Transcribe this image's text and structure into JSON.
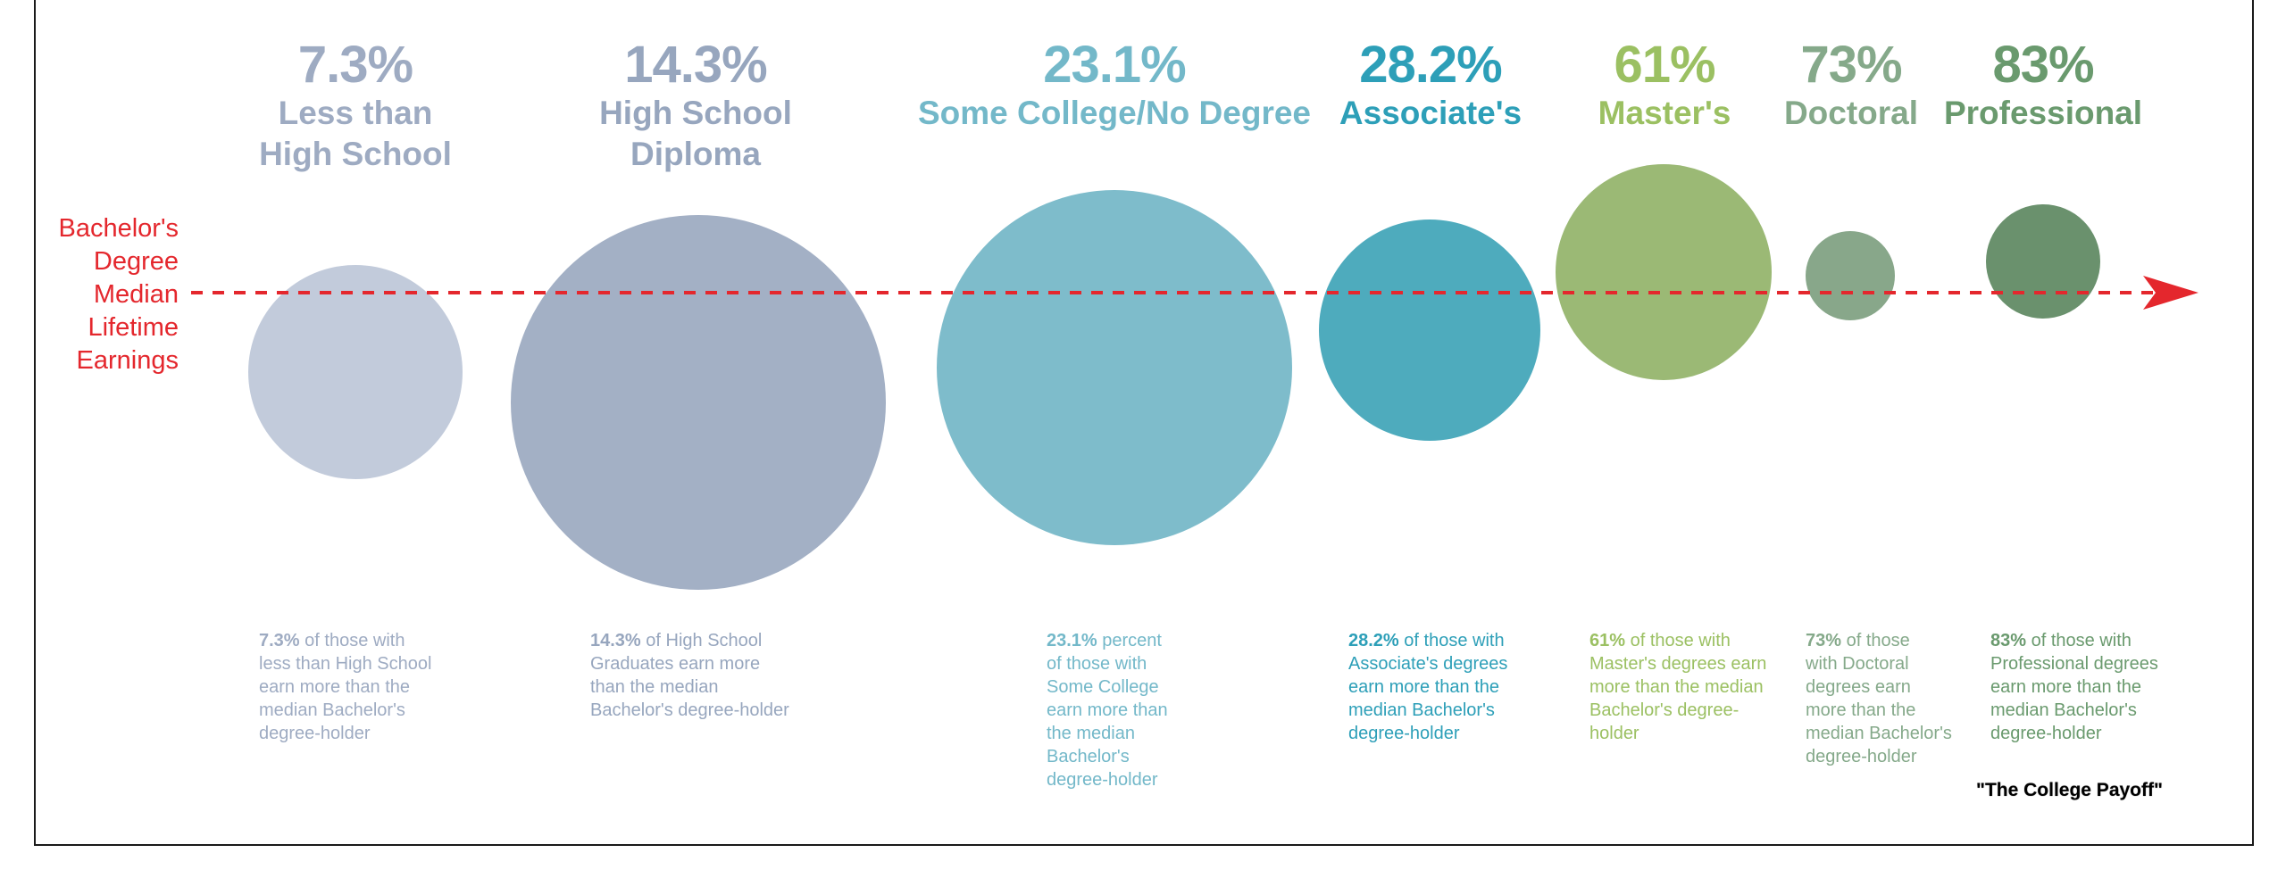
{
  "chart_data": {
    "type": "bubble",
    "title": "",
    "unit": "%",
    "reference_line": {
      "label_lines": [
        "Bachelor's",
        "Degree",
        "Median",
        "Lifetime",
        "Earnings"
      ],
      "color": "#e4272d",
      "style": "dashed-arrow"
    },
    "categories": [
      {
        "pct_label": "7.3%",
        "value": 7.3,
        "label_lines": [
          "Less than",
          "High School"
        ],
        "color": "#c2cbdb",
        "text_color": "#9eabc2",
        "desc_bold": "7.3%",
        "desc_lines": [
          " of those with",
          "less than High School",
          "earn more than the",
          "median Bachelor's",
          "degree-holder"
        ]
      },
      {
        "pct_label": "14.3%",
        "value": 14.3,
        "label_lines": [
          "High School",
          "Diploma"
        ],
        "color": "#a3b0c5",
        "text_color": "#97a6be",
        "desc_bold": "14.3%",
        "desc_lines": [
          " of High School",
          "Graduates earn more",
          "than the median",
          "Bachelor's degree-holder"
        ]
      },
      {
        "pct_label": "23.1%",
        "value": 23.1,
        "label_lines": [
          "Some College/No Degree"
        ],
        "color": "#7ebccb",
        "text_color": "#73b8c9",
        "desc_bold": "23.1%",
        "desc_lines": [
          " percent",
          "of those with",
          "Some College",
          "earn more than",
          "the median",
          "Bachelor's",
          "degree-holder"
        ]
      },
      {
        "pct_label": "28.2%",
        "value": 28.2,
        "label_lines": [
          "Associate's"
        ],
        "color": "#4eabbd",
        "text_color": "#2d9fb8",
        "desc_bold": "28.2%",
        "desc_lines": [
          " of those with",
          "Associate's degrees",
          "earn more than the",
          "median Bachelor's",
          "degree-holder"
        ]
      },
      {
        "pct_label": "61%",
        "value": 61,
        "label_lines": [
          "Master's"
        ],
        "color": "#9bb975",
        "text_color": "#9bc062",
        "desc_bold": "61%",
        "desc_lines": [
          " of those with",
          "Master's degrees earn",
          "more than the median",
          "Bachelor's degree-",
          "holder"
        ]
      },
      {
        "pct_label": "73%",
        "value": 73,
        "label_lines": [
          "Doctoral"
        ],
        "color": "#88a78a",
        "text_color": "#85a98a",
        "desc_bold": "73%",
        "desc_lines": [
          " of those",
          "with Doctoral",
          "degrees earn",
          "more than the",
          "median Bachelor's",
          "degree-holder"
        ]
      },
      {
        "pct_label": "83%",
        "value": 83,
        "label_lines": [
          "Professional"
        ],
        "color": "#6a916d",
        "text_color": "#6a9a6e",
        "desc_bold": "83%",
        "desc_lines": [
          " of those with",
          "Professional degrees",
          "earn more than the",
          "median Bachelor's",
          "degree-holder"
        ]
      }
    ]
  },
  "source": "\"The College Payoff\""
}
